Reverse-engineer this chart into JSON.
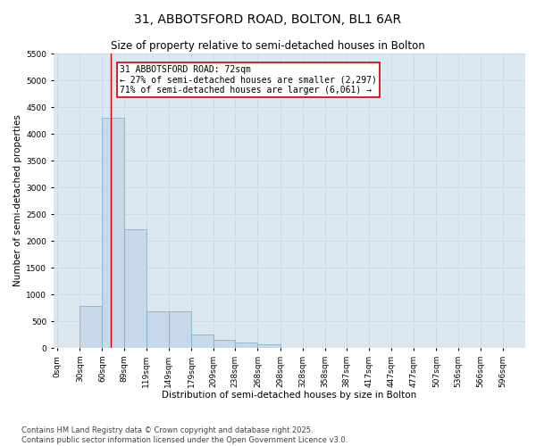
{
  "title": "31, ABBOTSFORD ROAD, BOLTON, BL1 6AR",
  "subtitle": "Size of property relative to semi-detached houses in Bolton",
  "xlabel": "Distribution of semi-detached houses by size in Bolton",
  "ylabel": "Number of semi-detached properties",
  "bar_left_edges": [
    0,
    30,
    60,
    89,
    119,
    149,
    179,
    209,
    238,
    268,
    298,
    328,
    358,
    387,
    417,
    447,
    477,
    507,
    536,
    566
  ],
  "bar_heights": [
    5,
    780,
    4300,
    2220,
    690,
    690,
    250,
    150,
    100,
    70,
    0,
    0,
    0,
    0,
    0,
    0,
    0,
    0,
    0,
    0
  ],
  "bar_widths": [
    30,
    30,
    29,
    30,
    30,
    30,
    30,
    29,
    30,
    30,
    30,
    30,
    29,
    30,
    30,
    30,
    30,
    29,
    30,
    30
  ],
  "bar_color": "#c8d8eb",
  "bar_edgecolor": "#7aaac8",
  "ylim": [
    0,
    5500
  ],
  "xlim": [
    -5,
    626
  ],
  "yticks": [
    0,
    500,
    1000,
    1500,
    2000,
    2500,
    3000,
    3500,
    4000,
    4500,
    5000,
    5500
  ],
  "xtick_labels": [
    "0sqm",
    "30sqm",
    "60sqm",
    "89sqm",
    "119sqm",
    "149sqm",
    "179sqm",
    "209sqm",
    "238sqm",
    "268sqm",
    "298sqm",
    "328sqm",
    "358sqm",
    "387sqm",
    "417sqm",
    "447sqm",
    "477sqm",
    "507sqm",
    "536sqm",
    "566sqm",
    "596sqm"
  ],
  "xtick_positions": [
    0,
    30,
    60,
    89,
    119,
    149,
    179,
    209,
    238,
    268,
    298,
    328,
    358,
    387,
    417,
    447,
    477,
    507,
    536,
    566,
    596
  ],
  "property_size": 72,
  "redline_color": "#cc0000",
  "annotation_title": "31 ABBOTSFORD ROAD: 72sqm",
  "annotation_line1": "← 27% of semi-detached houses are smaller (2,297)",
  "annotation_line2": "71% of semi-detached houses are larger (6,061) →",
  "annotation_box_color": "#cc0000",
  "annotation_text_color": "#000000",
  "annotation_bg": "#ffffff",
  "grid_color": "#c8d8eb",
  "background_color": "#dce8f0",
  "footer_line1": "Contains HM Land Registry data © Crown copyright and database right 2025.",
  "footer_line2": "Contains public sector information licensed under the Open Government Licence v3.0.",
  "title_fontsize": 10,
  "subtitle_fontsize": 8.5,
  "axis_label_fontsize": 7.5,
  "tick_fontsize": 6.5,
  "annotation_fontsize": 7,
  "footer_fontsize": 6
}
